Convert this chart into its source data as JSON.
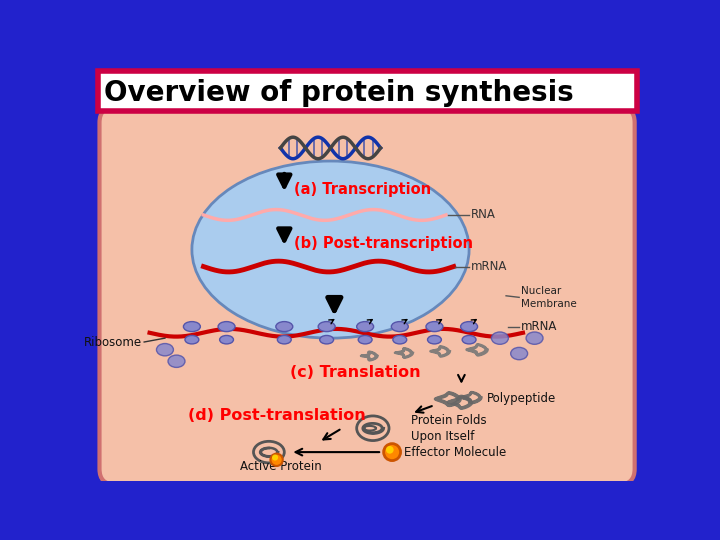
{
  "bg_color": "#2222CC",
  "title": "Overview of protein synthesis",
  "title_box_color": "#FFFFFF",
  "title_border_color": "#CC0044",
  "title_fontsize": 20,
  "cell_color": "#F5C0A8",
  "cell_border_color": "#D07070",
  "nucleus_color": "#AACCEE",
  "nucleus_border_color": "#6688BB",
  "label_a": "(a) Transcription",
  "label_b": "(b) Post-transcription",
  "label_c": "(c) Translation",
  "label_d": "(d) Post-translation",
  "label_rna": "RNA",
  "label_mrna_nucleus": "mRNA",
  "label_nuclear_membrane": "Nuclear\nMembrane",
  "label_mrna_cytoplasm": "mRNA",
  "label_ribosome": "Ribosome",
  "label_polypeptide": "Polypeptide",
  "label_protein_folds": "Protein Folds\nUpon Itself",
  "label_effector": "Effector Molecule",
  "label_active": "Active Protein",
  "label_color_red": "#FF0000",
  "label_color_black": "#000000",
  "dna_color1": "#1133AA",
  "dna_color2": "#444444",
  "rna_color": "#FFAAAA",
  "mrna_color": "#CC0000",
  "arrow_color": "#000000",
  "ribosome_color": "#8888CC",
  "ribosome_edge": "#5555AA"
}
